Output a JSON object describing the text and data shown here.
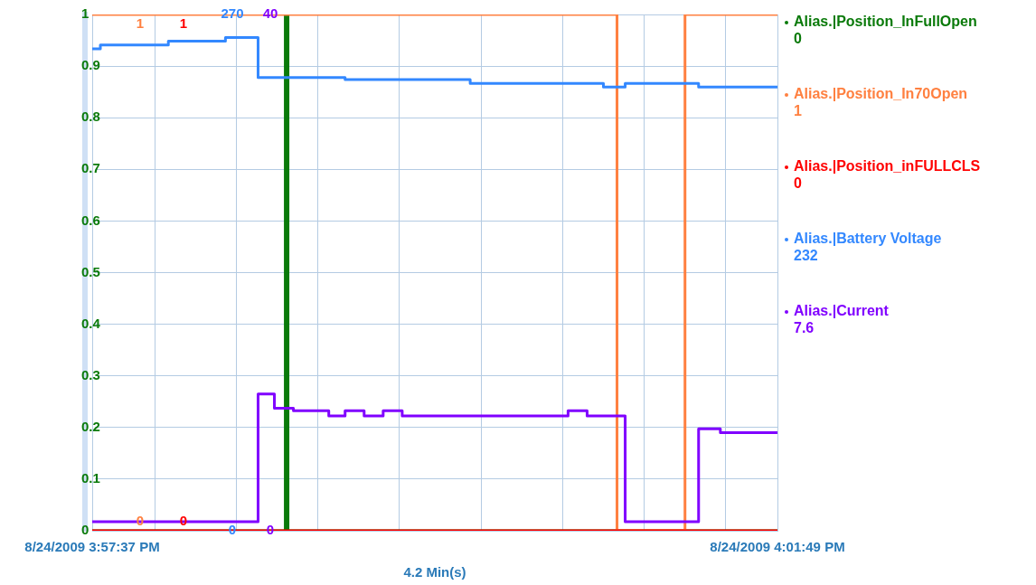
{
  "chart_data": {
    "type": "step",
    "xlabel": "4.2 Min(s)",
    "annotations": [
      "1",
      "0",
      "1",
      "0",
      "0",
      "1",
      "0",
      "232",
      "7.6"
    ],
    "xlim": [
      "2009-08-24T15:57:37",
      "2009-08-24T16:01:49"
    ],
    "xticks": [
      {
        "value": "2009-08-24T15:57:37",
        "label": "8/24/2009 3:57:37 PM"
      },
      {
        "value": "2009-08-24T15:58:00",
        "label": null
      },
      {
        "value": "2009-08-24T15:58:30",
        "label": null
      },
      {
        "value": "2009-08-24T15:59:00",
        "label": null
      },
      {
        "value": "2009-08-24T15:59:30",
        "label": null
      },
      {
        "value": "2009-08-24T16:00:00",
        "label": null
      },
      {
        "value": "2009-08-24T16:00:30",
        "label": null
      },
      {
        "value": "2009-08-24T16:01:00",
        "label": null
      },
      {
        "value": "2009-08-24T16:01:30",
        "label": null
      },
      {
        "value": "2009-08-24T16:01:49",
        "label": "8/24/2009 4:01:49 PM"
      }
    ],
    "ylim": [
      0,
      1
    ],
    "yticks": [
      0,
      0.1,
      0.2,
      0.3,
      0.4,
      0.5,
      0.6,
      0.7,
      0.8,
      0.9,
      1
    ],
    "y2lim": [
      0,
      270
    ],
    "y2ticks": [
      0,
      270
    ],
    "y3lim": [
      0,
      40
    ],
    "y3ticks": [
      0,
      40
    ],
    "grid": true,
    "legend": "right",
    "marker": "none",
    "line_style": "solid",
    "series": [
      {
        "name": "Alias.|Position_InFullOpen",
        "color": "#0a7a0a",
        "axis": "y",
        "x": [
          "2009-08-24T15:57:37",
          "2009-08-24T15:58:48",
          "2009-08-24T15:58:49",
          "2009-08-24T16:01:49"
        ],
        "values": [
          0,
          1,
          0,
          0
        ]
      },
      {
        "name": "Alias.|Position_In70Open",
        "color": "#ff8040",
        "axis": "y",
        "x": [
          "2009-08-24T15:57:37",
          "2009-08-24T16:00:50",
          "2009-08-24T16:01:15",
          "2009-08-24T16:01:49"
        ],
        "values": [
          1,
          0,
          1,
          1
        ]
      },
      {
        "name": "Alias.|Position_inFULLCLS",
        "color": "#ff0000",
        "axis": "y",
        "x": [
          "2009-08-24T15:57:37",
          "2009-08-24T16:01:49"
        ],
        "values": [
          0,
          0
        ]
      },
      {
        "name": "Alias.|Battery Voltage",
        "color": "#3388ff",
        "axis": "y2",
        "x": [
          "2009-08-24T15:57:37",
          "2009-08-24T15:57:40",
          "2009-08-24T15:58:05",
          "2009-08-24T15:58:26",
          "2009-08-24T15:58:38",
          "2009-08-24T15:59:10",
          "2009-08-24T15:59:56",
          "2009-08-24T16:00:45",
          "2009-08-24T16:00:53",
          "2009-08-24T16:01:20",
          "2009-08-24T16:01:49"
        ],
        "values": [
          252,
          254,
          256,
          258,
          237,
          236,
          234,
          232,
          234,
          232,
          232
        ]
      },
      {
        "name": "Alias.|Current",
        "color": "#8000ff",
        "axis": "y3",
        "x": [
          "2009-08-24T15:57:37",
          "2009-08-24T15:58:38",
          "2009-08-24T15:58:44",
          "2009-08-24T15:58:51",
          "2009-08-24T15:59:04",
          "2009-08-24T15:59:10",
          "2009-08-24T15:59:17",
          "2009-08-24T15:59:24",
          "2009-08-24T15:59:31",
          "2009-08-24T16:00:32",
          "2009-08-24T16:00:39",
          "2009-08-24T16:00:53",
          "2009-08-24T16:01:20",
          "2009-08-24T16:01:28",
          "2009-08-24T16:01:49"
        ],
        "values": [
          0.7,
          10.6,
          9.5,
          9.3,
          8.9,
          9.3,
          8.9,
          9.3,
          8.9,
          9.3,
          8.9,
          0.7,
          7.9,
          7.6,
          7.6
        ]
      }
    ]
  }
}
